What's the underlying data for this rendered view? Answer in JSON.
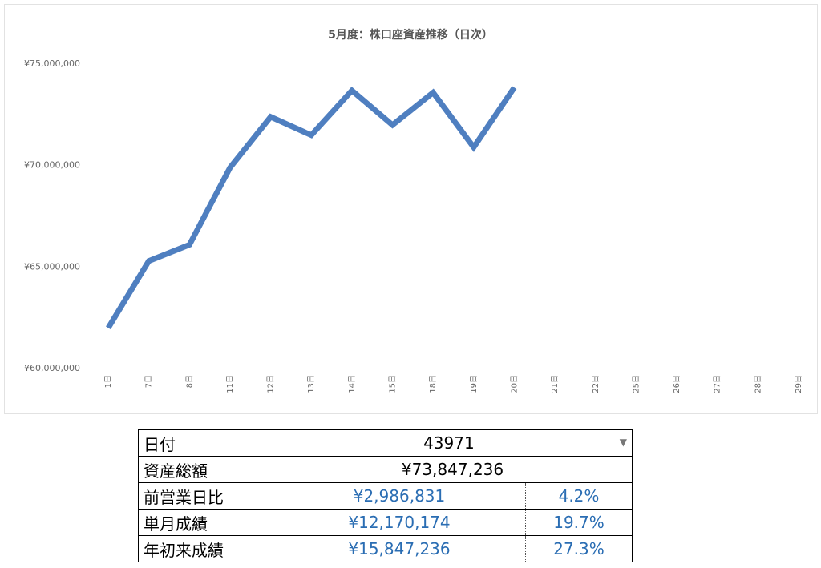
{
  "chart_data": {
    "type": "line",
    "title": "5月度：株口座資産推移（日次）",
    "categories": [
      "1日",
      "7日",
      "8日",
      "11日",
      "12日",
      "13日",
      "14日",
      "15日",
      "18日",
      "19日",
      "20日",
      "21日",
      "22日",
      "25日",
      "26日",
      "27日",
      "28日",
      "29日"
    ],
    "series": [
      {
        "name": "資産総額",
        "color": "#4f7fc0",
        "values": [
          62000000,
          65300000,
          66100000,
          69900000,
          72400000,
          71500000,
          73700000,
          72000000,
          73600000,
          70900000,
          73847236,
          null,
          null,
          null,
          null,
          null,
          null,
          null
        ]
      }
    ],
    "ylim": [
      60000000,
      75000000
    ],
    "yticks": [
      {
        "value": 60000000,
        "label": "¥60,000,000"
      },
      {
        "value": 65000000,
        "label": "¥65,000,000"
      },
      {
        "value": 70000000,
        "label": "¥70,000,000"
      },
      {
        "value": 75000000,
        "label": "¥75,000,000"
      }
    ],
    "grid": false
  },
  "table": {
    "rows": [
      [
        "日付",
        "43971"
      ],
      [
        "資産総額",
        "¥73,847,236"
      ],
      [
        "前営業日比",
        "¥2,986,831",
        "4.2%"
      ],
      [
        "単月成績",
        "¥12,170,174",
        "19.7%"
      ],
      [
        "年初来成績",
        "¥15,847,236",
        "27.3%"
      ]
    ]
  }
}
